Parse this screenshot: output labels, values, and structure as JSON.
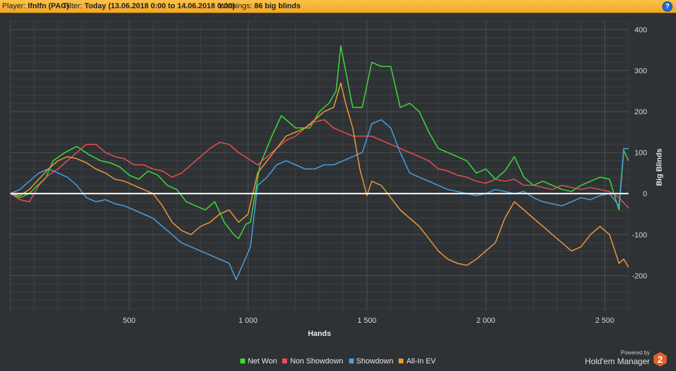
{
  "header": {
    "player_label": "Player:",
    "player_name": "lfnlfn (PAC)",
    "filter_label": "Filter:",
    "filter_value": "Today (13.06.2018 0:00 to 14.06.2018 0:00)",
    "winnings_label": "Winnings:",
    "winnings_value": "86 big blinds",
    "help_icon": "question-icon",
    "help_label": "?"
  },
  "branding": {
    "powered_by": "Powered by",
    "name": "Hold'em Manager",
    "logo_digit": "2",
    "logo_color": "#e0622a"
  },
  "chart_data": {
    "type": "line",
    "xlabel": "Hands",
    "ylabel": "Big Blinds",
    "xlim": [
      0,
      2600
    ],
    "ylim": [
      -285,
      420
    ],
    "x_ticks": [
      500,
      1000,
      1500,
      2000,
      2500
    ],
    "x_tick_labels": [
      "500",
      "1 000",
      "1 500",
      "2 000",
      "2 500"
    ],
    "y_ticks": [
      400,
      300,
      200,
      100,
      0,
      -100,
      -200
    ],
    "y_tick_labels": [
      "400",
      "300",
      "200",
      "100",
      "0",
      "-100",
      "-200"
    ],
    "grid": true,
    "zero_line": true,
    "legend_position": "bottom",
    "series": [
      {
        "name": "Net Won",
        "color": "#3bdc3b",
        "points": [
          [
            0,
            0
          ],
          [
            40,
            -10
          ],
          [
            80,
            0
          ],
          [
            150,
            40
          ],
          [
            180,
            80
          ],
          [
            230,
            100
          ],
          [
            280,
            115
          ],
          [
            330,
            95
          ],
          [
            380,
            80
          ],
          [
            420,
            75
          ],
          [
            460,
            65
          ],
          [
            500,
            45
          ],
          [
            540,
            35
          ],
          [
            580,
            55
          ],
          [
            620,
            45
          ],
          [
            660,
            20
          ],
          [
            700,
            10
          ],
          [
            740,
            -20
          ],
          [
            780,
            -30
          ],
          [
            820,
            -40
          ],
          [
            860,
            -20
          ],
          [
            900,
            -70
          ],
          [
            940,
            -100
          ],
          [
            960,
            -110
          ],
          [
            990,
            -75
          ],
          [
            1010,
            -70
          ],
          [
            1050,
            70
          ],
          [
            1100,
            140
          ],
          [
            1140,
            190
          ],
          [
            1200,
            160
          ],
          [
            1260,
            160
          ],
          [
            1300,
            200
          ],
          [
            1340,
            220
          ],
          [
            1370,
            250
          ],
          [
            1390,
            360
          ],
          [
            1410,
            300
          ],
          [
            1440,
            210
          ],
          [
            1480,
            210
          ],
          [
            1520,
            320
          ],
          [
            1560,
            310
          ],
          [
            1600,
            310
          ],
          [
            1640,
            210
          ],
          [
            1680,
            220
          ],
          [
            1720,
            200
          ],
          [
            1760,
            150
          ],
          [
            1800,
            110
          ],
          [
            1840,
            100
          ],
          [
            1880,
            90
          ],
          [
            1920,
            80
          ],
          [
            1960,
            50
          ],
          [
            2000,
            60
          ],
          [
            2040,
            35
          ],
          [
            2080,
            55
          ],
          [
            2120,
            90
          ],
          [
            2160,
            40
          ],
          [
            2200,
            20
          ],
          [
            2240,
            30
          ],
          [
            2280,
            20
          ],
          [
            2320,
            10
          ],
          [
            2360,
            5
          ],
          [
            2400,
            20
          ],
          [
            2440,
            30
          ],
          [
            2480,
            40
          ],
          [
            2520,
            35
          ],
          [
            2560,
            -40
          ],
          [
            2580,
            105
          ],
          [
            2600,
            80
          ]
        ]
      },
      {
        "name": "Non Showdown",
        "color": "#e85050",
        "points": [
          [
            0,
            0
          ],
          [
            40,
            -15
          ],
          [
            80,
            -20
          ],
          [
            120,
            20
          ],
          [
            160,
            45
          ],
          [
            200,
            60
          ],
          [
            240,
            80
          ],
          [
            280,
            100
          ],
          [
            320,
            120
          ],
          [
            360,
            120
          ],
          [
            400,
            100
          ],
          [
            440,
            90
          ],
          [
            480,
            85
          ],
          [
            520,
            70
          ],
          [
            560,
            70
          ],
          [
            600,
            60
          ],
          [
            640,
            55
          ],
          [
            680,
            40
          ],
          [
            720,
            50
          ],
          [
            760,
            70
          ],
          [
            800,
            90
          ],
          [
            840,
            110
          ],
          [
            880,
            125
          ],
          [
            920,
            120
          ],
          [
            960,
            100
          ],
          [
            1000,
            85
          ],
          [
            1040,
            70
          ],
          [
            1080,
            90
          ],
          [
            1120,
            110
          ],
          [
            1160,
            130
          ],
          [
            1200,
            140
          ],
          [
            1240,
            160
          ],
          [
            1280,
            175
          ],
          [
            1320,
            180
          ],
          [
            1360,
            160
          ],
          [
            1400,
            150
          ],
          [
            1440,
            140
          ],
          [
            1480,
            140
          ],
          [
            1520,
            140
          ],
          [
            1560,
            130
          ],
          [
            1600,
            120
          ],
          [
            1640,
            110
          ],
          [
            1680,
            100
          ],
          [
            1720,
            90
          ],
          [
            1760,
            80
          ],
          [
            1800,
            60
          ],
          [
            1840,
            55
          ],
          [
            1880,
            45
          ],
          [
            1920,
            40
          ],
          [
            1960,
            30
          ],
          [
            2000,
            25
          ],
          [
            2040,
            35
          ],
          [
            2080,
            30
          ],
          [
            2120,
            35
          ],
          [
            2160,
            20
          ],
          [
            2200,
            20
          ],
          [
            2240,
            15
          ],
          [
            2280,
            10
          ],
          [
            2320,
            20
          ],
          [
            2360,
            15
          ],
          [
            2400,
            10
          ],
          [
            2440,
            15
          ],
          [
            2480,
            10
          ],
          [
            2520,
            5
          ],
          [
            2560,
            -10
          ],
          [
            2600,
            -35
          ]
        ]
      },
      {
        "name": "Showdown",
        "color": "#4a9fe0",
        "points": [
          [
            0,
            0
          ],
          [
            40,
            10
          ],
          [
            80,
            30
          ],
          [
            120,
            50
          ],
          [
            160,
            60
          ],
          [
            200,
            50
          ],
          [
            240,
            40
          ],
          [
            280,
            20
          ],
          [
            320,
            -10
          ],
          [
            360,
            -20
          ],
          [
            400,
            -15
          ],
          [
            440,
            -25
          ],
          [
            480,
            -30
          ],
          [
            520,
            -40
          ],
          [
            560,
            -50
          ],
          [
            600,
            -60
          ],
          [
            640,
            -80
          ],
          [
            680,
            -100
          ],
          [
            720,
            -120
          ],
          [
            760,
            -130
          ],
          [
            800,
            -140
          ],
          [
            840,
            -150
          ],
          [
            880,
            -160
          ],
          [
            920,
            -170
          ],
          [
            950,
            -210
          ],
          [
            980,
            -170
          ],
          [
            1010,
            -130
          ],
          [
            1040,
            20
          ],
          [
            1080,
            40
          ],
          [
            1120,
            70
          ],
          [
            1160,
            80
          ],
          [
            1200,
            70
          ],
          [
            1240,
            60
          ],
          [
            1280,
            60
          ],
          [
            1320,
            70
          ],
          [
            1360,
            70
          ],
          [
            1400,
            80
          ],
          [
            1440,
            90
          ],
          [
            1480,
            100
          ],
          [
            1520,
            170
          ],
          [
            1560,
            180
          ],
          [
            1600,
            160
          ],
          [
            1640,
            100
          ],
          [
            1680,
            50
          ],
          [
            1720,
            40
          ],
          [
            1760,
            30
          ],
          [
            1800,
            20
          ],
          [
            1840,
            10
          ],
          [
            1880,
            5
          ],
          [
            1920,
            0
          ],
          [
            1960,
            -5
          ],
          [
            2000,
            0
          ],
          [
            2040,
            10
          ],
          [
            2080,
            5
          ],
          [
            2120,
            0
          ],
          [
            2160,
            5
          ],
          [
            2200,
            -10
          ],
          [
            2240,
            -20
          ],
          [
            2280,
            -25
          ],
          [
            2320,
            -30
          ],
          [
            2360,
            -20
          ],
          [
            2400,
            -10
          ],
          [
            2440,
            -15
          ],
          [
            2480,
            -5
          ],
          [
            2520,
            0
          ],
          [
            2560,
            -30
          ],
          [
            2580,
            110
          ],
          [
            2600,
            110
          ]
        ]
      },
      {
        "name": "All-In EV",
        "color": "#ee9838",
        "points": [
          [
            0,
            0
          ],
          [
            40,
            -5
          ],
          [
            80,
            10
          ],
          [
            120,
            35
          ],
          [
            160,
            60
          ],
          [
            200,
            80
          ],
          [
            240,
            90
          ],
          [
            280,
            85
          ],
          [
            320,
            75
          ],
          [
            360,
            60
          ],
          [
            400,
            50
          ],
          [
            440,
            35
          ],
          [
            480,
            30
          ],
          [
            520,
            20
          ],
          [
            560,
            10
          ],
          [
            600,
            0
          ],
          [
            640,
            -30
          ],
          [
            680,
            -70
          ],
          [
            720,
            -90
          ],
          [
            760,
            -100
          ],
          [
            800,
            -80
          ],
          [
            840,
            -70
          ],
          [
            880,
            -50
          ],
          [
            920,
            -40
          ],
          [
            960,
            -70
          ],
          [
            1000,
            -50
          ],
          [
            1040,
            50
          ],
          [
            1080,
            80
          ],
          [
            1120,
            110
          ],
          [
            1160,
            140
          ],
          [
            1200,
            150
          ],
          [
            1240,
            160
          ],
          [
            1280,
            180
          ],
          [
            1320,
            200
          ],
          [
            1360,
            210
          ],
          [
            1390,
            270
          ],
          [
            1410,
            220
          ],
          [
            1440,
            160
          ],
          [
            1470,
            60
          ],
          [
            1500,
            -5
          ],
          [
            1520,
            30
          ],
          [
            1560,
            20
          ],
          [
            1600,
            -10
          ],
          [
            1640,
            -40
          ],
          [
            1680,
            -60
          ],
          [
            1720,
            -80
          ],
          [
            1760,
            -110
          ],
          [
            1800,
            -140
          ],
          [
            1840,
            -160
          ],
          [
            1880,
            -170
          ],
          [
            1920,
            -175
          ],
          [
            1960,
            -160
          ],
          [
            2000,
            -140
          ],
          [
            2040,
            -120
          ],
          [
            2080,
            -60
          ],
          [
            2120,
            -20
          ],
          [
            2160,
            -40
          ],
          [
            2200,
            -60
          ],
          [
            2240,
            -80
          ],
          [
            2280,
            -100
          ],
          [
            2320,
            -120
          ],
          [
            2360,
            -140
          ],
          [
            2400,
            -130
          ],
          [
            2440,
            -100
          ],
          [
            2480,
            -80
          ],
          [
            2520,
            -100
          ],
          [
            2560,
            -170
          ],
          [
            2580,
            -160
          ],
          [
            2600,
            -180
          ]
        ]
      }
    ]
  }
}
